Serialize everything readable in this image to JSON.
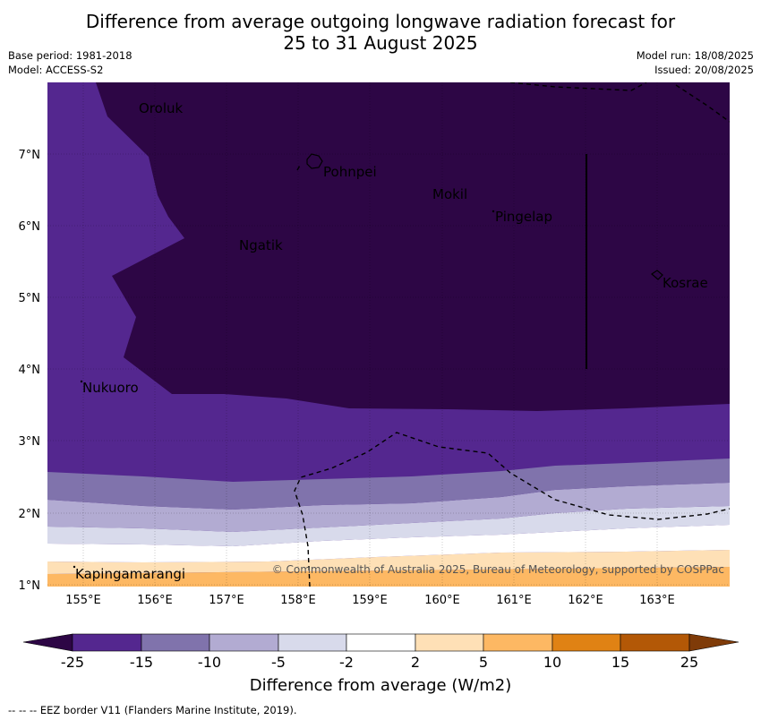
{
  "title": {
    "line1": "Difference from average outgoing longwave radiation forecast for",
    "line2": "25 to 31 August 2025"
  },
  "meta": {
    "base_period": "Base period: 1981-2018",
    "model": "Model: ACCESS-S2",
    "model_run": "Model run: 18/08/2025",
    "issued": "Issued: 20/08/2025"
  },
  "axes": {
    "x_ticks": [
      "155°E",
      "156°E",
      "157°E",
      "158°E",
      "159°E",
      "160°E",
      "161°E",
      "162°E",
      "163°E"
    ],
    "y_ticks": [
      "7°N",
      "6°N",
      "5°N",
      "4°N",
      "3°N",
      "2°N",
      "1°N"
    ]
  },
  "places": [
    {
      "name": "Oroluk"
    },
    {
      "name": "Pohnpei"
    },
    {
      "name": "Mokil"
    },
    {
      "name": "Pingelap"
    },
    {
      "name": "Ngatik"
    },
    {
      "name": "Kosrae"
    },
    {
      "name": "Nukuoro"
    },
    {
      "name": "Kapingamarangi"
    }
  ],
  "copyright": "© Commonwealth of Australia 2025, Bureau of Meteorology, supported by COSPPac",
  "colorbar": {
    "title": "Difference from average (W/m2)",
    "labels": [
      "-25",
      "-15",
      "-10",
      "-5",
      "-2",
      "2",
      "5",
      "10",
      "15",
      "25"
    ],
    "colors": {
      "below_min": "#2d0645",
      "b1": "#54278f",
      "b2": "#8073ac",
      "b3": "#b2abd2",
      "b4": "#d8daeb",
      "b5": "#ffffff",
      "b6": "#fee0b6",
      "b7": "#fdb863",
      "b8": "#e08214",
      "b9": "#b35806",
      "above_max": "#7f3b08"
    }
  },
  "footer": "--  --  -- EEZ border V11 (Flanders Marine Institute, 2019)."
}
